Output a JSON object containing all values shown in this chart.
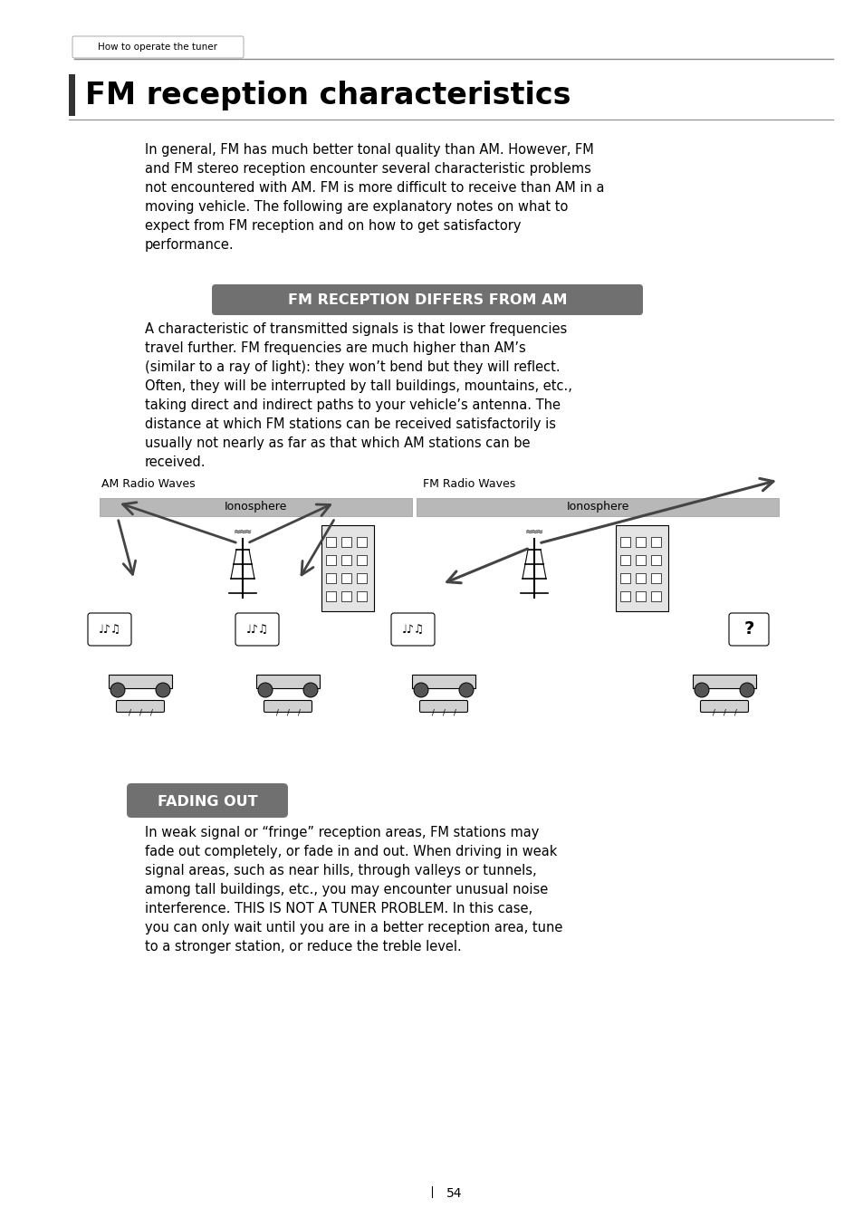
{
  "header_text": "How to operate the tuner",
  "title": "FM reception characteristics",
  "intro_text": "In general, FM has much better tonal quality than AM. However, FM\nand FM stereo reception encounter several characteristic problems\nnot encountered with AM. FM is more difficult to receive than AM in a\nmoving vehicle. The following are explanatory notes on what to\nexpect from FM reception and on how to get satisfactory\nperformance.",
  "section1_label": "FM RECEPTION DIFFERS FROM AM",
  "section1_text": "A characteristic of transmitted signals is that lower frequencies\ntravel further. FM frequencies are much higher than AM’s\n(similar to a ray of light): they won’t bend but they will reflect.\nOften, they will be interrupted by tall buildings, mountains, etc.,\ntaking direct and indirect paths to your vehicle’s antenna. The\ndistance at which FM stations can be received satisfactorily is\nusually not nearly as far as that which AM stations can be\nreceived.",
  "am_label": "AM Radio Waves",
  "fm_label": "FM Radio Waves",
  "ionosphere_label1": "Ionosphere",
  "ionosphere_label2": "Ionosphere",
  "section2_label": "FADING OUT",
  "section2_text": "In weak signal or “fringe” reception areas, FM stations may\nfade out completely, or fade in and out. When driving in weak\nsignal areas, such as near hills, through valleys or tunnels,\namong tall buildings, etc., you may encounter unusual noise\ninterference. THIS IS NOT A TUNER PROBLEM. In this case,\nyou can only wait until you are in a better reception area, tune\nto a stronger station, or reduce the treble level.",
  "page_number": "54",
  "section_bg_color": "#707070",
  "ionosphere_color": "#b8b8b8",
  "header_line_color": "#888888"
}
